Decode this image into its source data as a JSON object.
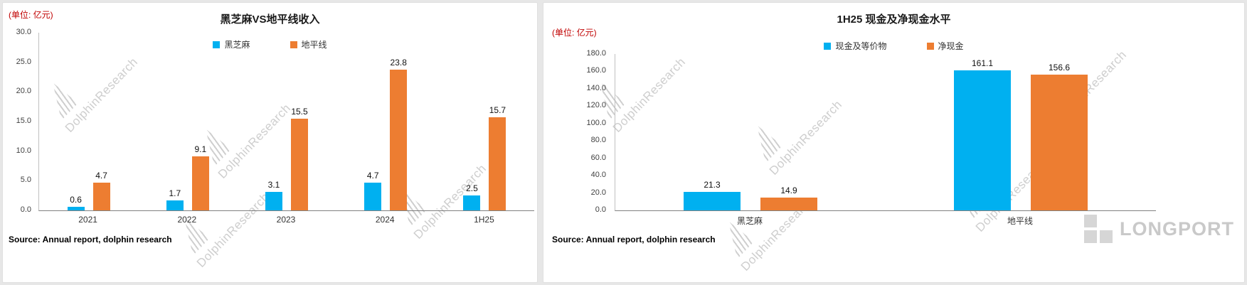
{
  "watermark": {
    "text": "DolphinResearch"
  },
  "footer": {
    "longport_label": "LONGPORT"
  },
  "charts": [
    {
      "unit_label": "(单位: 亿元)",
      "source": "Source: Annual report, dolphin research"
    },
    {
      "unit_label": "(单位: 亿元)",
      "source": "Source: Annual report, dolphin research"
    }
  ],
  "chart_data": [
    {
      "type": "bar",
      "title": "黑芝麻VS地平线收入",
      "categories": [
        "2021",
        "2022",
        "2023",
        "2024",
        "1H25"
      ],
      "series": [
        {
          "name": "黑芝麻",
          "color": "#00B0F0",
          "values": [
            0.6,
            1.7,
            3.1,
            4.7,
            2.5
          ]
        },
        {
          "name": "地平线",
          "color": "#ED7D31",
          "values": [
            4.7,
            9.1,
            15.5,
            23.8,
            15.7
          ]
        }
      ],
      "xlabel": "",
      "ylabel": "",
      "ylim": [
        0,
        30
      ],
      "ytick_step": 5,
      "ytick_format_decimals": 1,
      "legend_position": "top",
      "grid": false,
      "bar_value_labels": true
    },
    {
      "type": "bar",
      "title": "1H25 现金及净现金水平",
      "categories": [
        "黑芝麻",
        "地平线"
      ],
      "series": [
        {
          "name": "现金及等价物",
          "color": "#00B0F0",
          "values": [
            21.3,
            161.1
          ]
        },
        {
          "name": "净现金",
          "color": "#ED7D31",
          "values": [
            14.9,
            156.6
          ]
        }
      ],
      "xlabel": "",
      "ylabel": "",
      "ylim": [
        0,
        180
      ],
      "ytick_step": 20,
      "ytick_format_decimals": 1,
      "legend_position": "top",
      "grid": false,
      "bar_value_labels": true
    }
  ]
}
